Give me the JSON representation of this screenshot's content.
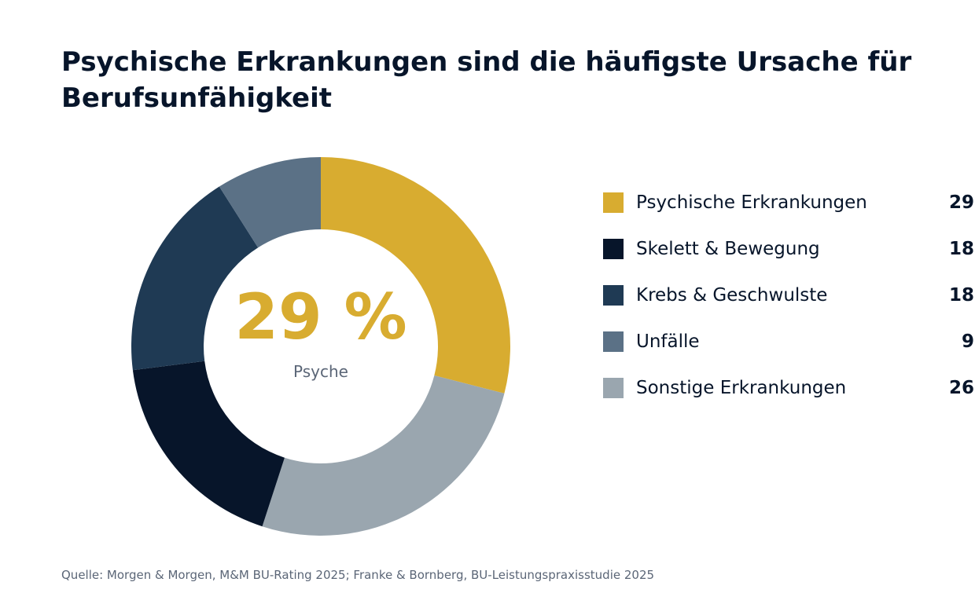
{
  "title": "Psychische Erkrankungen sind die häufigste Ursache für Berufsunfähigkeit",
  "center": {
    "value": "29 %",
    "label": "Psyche"
  },
  "chart_data": {
    "type": "pie",
    "variant": "donut",
    "title": "Psychische Erkrankungen sind die häufigste Ursache für Berufsunfähigkeit",
    "unit": "%",
    "start_angle": "12 o'clock",
    "direction": "clockwise",
    "legend_position": "right",
    "categories": [
      "Psychische Erkrankungen",
      "Skelett & Bewegung",
      "Krebs & Geschwulste",
      "Unfälle",
      "Sonstige Erkrankungen"
    ],
    "values": [
      29,
      18,
      18,
      9,
      26
    ],
    "colors": [
      "#d8ac30",
      "#07152a",
      "#1f3a54",
      "#5b7186",
      "#9aa6af"
    ],
    "labels": [
      "29 %",
      "18 %",
      "18 %",
      "9 %",
      "26 %"
    ],
    "draw_order": [
      0,
      4,
      1,
      2,
      3
    ]
  },
  "source": "Quelle: Morgen & Morgen, M&M BU-Rating 2025; Franke & Bornberg, BU-Leistungspraxisstudie 2025"
}
